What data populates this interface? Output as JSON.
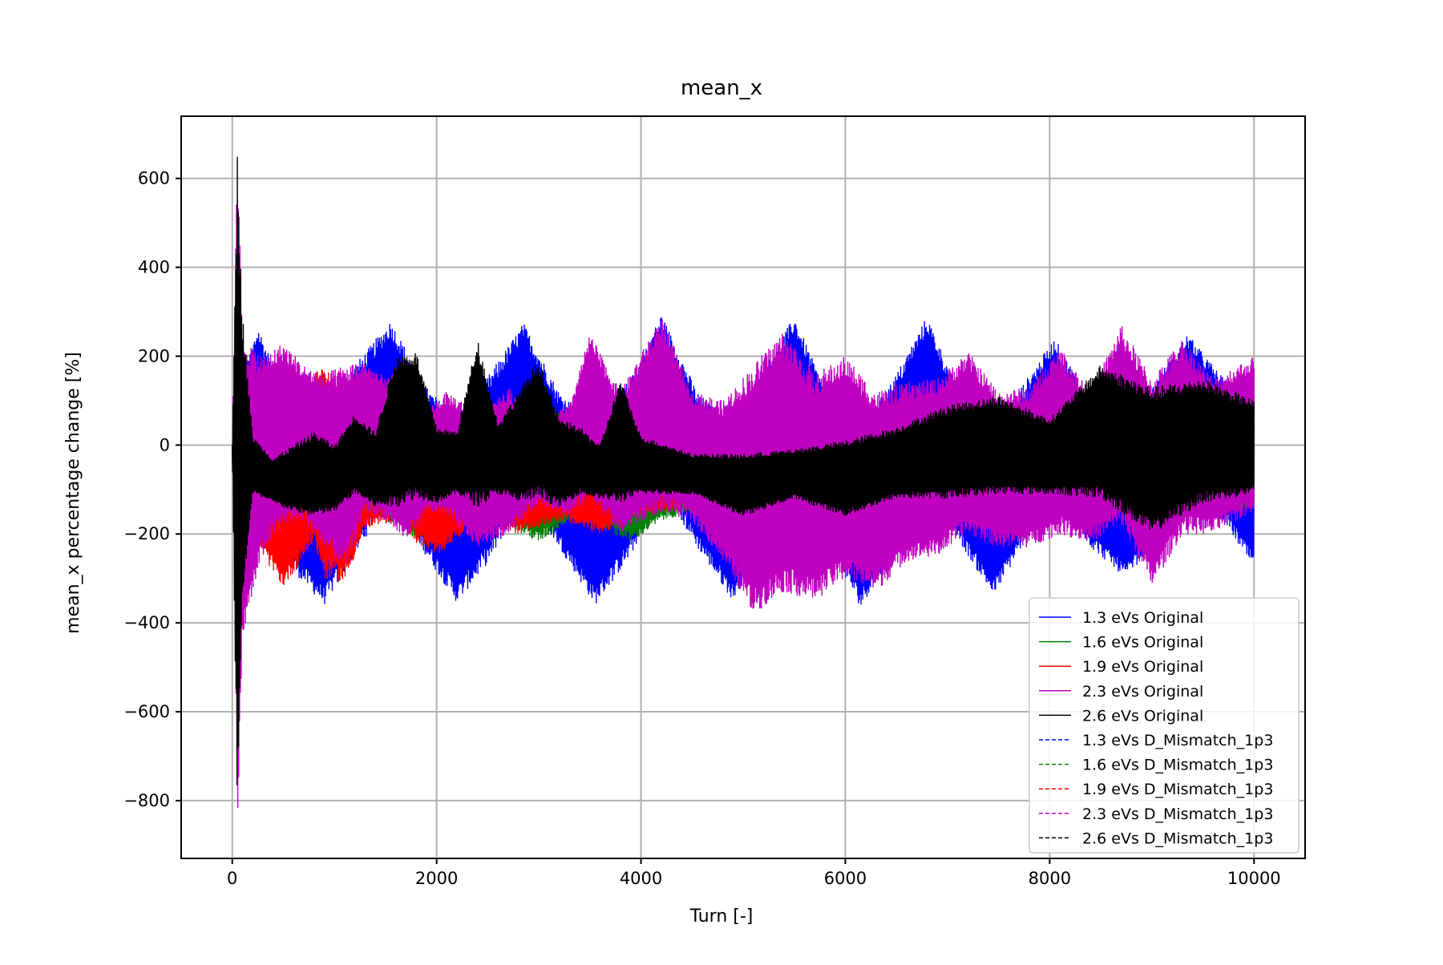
{
  "chart_data": {
    "type": "line",
    "title": "mean_x",
    "xlabel": "Turn [-]",
    "ylabel": "mean_x percentage change [%]",
    "xlim": [
      -500,
      10500
    ],
    "ylim": [
      -930,
      740
    ],
    "xticks": [
      0,
      2000,
      4000,
      6000,
      8000,
      10000
    ],
    "xtick_labels": [
      "0",
      "2000",
      "4000",
      "6000",
      "8000",
      "10000"
    ],
    "yticks": [
      600,
      400,
      200,
      0,
      -200,
      -400,
      -600,
      -800
    ],
    "ytick_labels": [
      "600",
      "400",
      "200",
      "0",
      "−200",
      "−400",
      "−600",
      "−800"
    ],
    "grid": true,
    "legend_position": "lower-right",
    "series": [
      {
        "name": "1.3 eVs Original",
        "color": "#0000ff",
        "style": "solid",
        "envelope": {
          "x": [
            0,
            100,
            250,
            500,
            900,
            1200,
            1550,
            1900,
            2200,
            2550,
            2850,
            3200,
            3550,
            3900,
            4200,
            4550,
            4900,
            5200,
            5500,
            5850,
            6150,
            6500,
            6800,
            7150,
            7450,
            7750,
            8050,
            8400,
            8750,
            9050,
            9350,
            9700,
            10000
          ],
          "upper": [
            0,
            150,
            270,
            120,
            60,
            180,
            280,
            130,
            60,
            170,
            275,
            120,
            50,
            150,
            295,
            120,
            40,
            170,
            290,
            100,
            40,
            160,
            290,
            100,
            40,
            140,
            240,
            100,
            20,
            150,
            250,
            150,
            50
          ],
          "lower": [
            0,
            -140,
            -150,
            -260,
            -360,
            -250,
            -110,
            -250,
            -355,
            -250,
            -110,
            -230,
            -360,
            -250,
            -100,
            -230,
            -350,
            -220,
            -100,
            -230,
            -365,
            -230,
            -100,
            -230,
            -340,
            -220,
            -100,
            -230,
            -300,
            -210,
            -90,
            -170,
            -280
          ]
        }
      },
      {
        "name": "1.6 eVs Original",
        "color": "#008000",
        "style": "solid",
        "envelope": {
          "x": [
            0,
            100,
            300,
            600,
            900,
            1200,
            1500,
            1800,
            2100,
            2400,
            2700,
            3000,
            3300,
            3600,
            3900,
            4200,
            4500,
            4800,
            5500,
            6000,
            7000,
            8000,
            9000,
            10000
          ],
          "upper": [
            0,
            60,
            80,
            40,
            60,
            80,
            40,
            30,
            20,
            60,
            50,
            40,
            90,
            60,
            30,
            20,
            60,
            30,
            20,
            10,
            20,
            10,
            20,
            0
          ],
          "lower": [
            0,
            -120,
            -200,
            -170,
            -210,
            -140,
            -170,
            -210,
            -200,
            -170,
            -180,
            -220,
            -170,
            -180,
            -220,
            -170,
            -150,
            -160,
            -130,
            -140,
            -150,
            -130,
            -160,
            -140
          ]
        }
      },
      {
        "name": "1.9 eVs Original",
        "color": "#ff0000",
        "style": "solid",
        "envelope": {
          "x": [
            0,
            100,
            300,
            500,
            800,
            900,
            1100,
            1300,
            1600,
            1800,
            2000,
            2400,
            2800,
            3200,
            3600,
            4000,
            4500,
            5000,
            6000,
            7000,
            8000,
            9000,
            10000
          ],
          "upper": [
            0,
            150,
            80,
            40,
            160,
            180,
            120,
            60,
            100,
            130,
            50,
            60,
            20,
            40,
            60,
            20,
            20,
            10,
            10,
            10,
            10,
            10,
            0
          ],
          "lower": [
            0,
            -150,
            -250,
            -320,
            -220,
            -300,
            -310,
            -190,
            -170,
            -220,
            -250,
            -170,
            -200,
            -170,
            -200,
            -160,
            -140,
            -150,
            -130,
            -140,
            -150,
            -150,
            -130
          ]
        }
      },
      {
        "name": "2.3 eVs Original",
        "color": "#c000c0",
        "style": "solid",
        "envelope": {
          "x": [
            0,
            50,
            100,
            300,
            500,
            700,
            900,
            1100,
            1300,
            1500,
            1700,
            1900,
            2100,
            2400,
            2700,
            3000,
            3300,
            3500,
            3800,
            4200,
            4500,
            4800,
            5100,
            5400,
            5700,
            6000,
            6300,
            6600,
            6900,
            7200,
            7500,
            7800,
            8100,
            8400,
            8700,
            9000,
            9300,
            9600,
            10000
          ],
          "upper": [
            0,
            670,
            250,
            200,
            230,
            180,
            160,
            180,
            190,
            150,
            200,
            80,
            120,
            80,
            130,
            60,
            90,
            250,
            120,
            290,
            120,
            100,
            180,
            260,
            160,
            200,
            120,
            140,
            150,
            210,
            120,
            130,
            220,
            120,
            270,
            150,
            240,
            150,
            200
          ],
          "lower": [
            0,
            -850,
            -440,
            -240,
            -180,
            -170,
            -230,
            -280,
            -150,
            -170,
            -220,
            -150,
            -160,
            -230,
            -200,
            -130,
            -160,
            -120,
            -200,
            -150,
            -170,
            -260,
            -380,
            -330,
            -350,
            -300,
            -330,
            -260,
            -250,
            -200,
            -230,
            -230,
            -200,
            -220,
            -180,
            -320,
            -200,
            -200,
            -150
          ]
        }
      },
      {
        "name": "2.6 eVs Original",
        "color": "#000000",
        "style": "solid",
        "envelope": {
          "x": [
            0,
            50,
            100,
            200,
            400,
            600,
            800,
            1000,
            1200,
            1400,
            1600,
            1800,
            2000,
            2200,
            2400,
            2600,
            2800,
            3000,
            3200,
            3400,
            3600,
            3800,
            4000,
            4500,
            5000,
            5500,
            6000,
            6500,
            7000,
            7500,
            8000,
            8500,
            9000,
            9500,
            10000
          ],
          "upper": [
            0,
            660,
            300,
            20,
            -30,
            0,
            30,
            0,
            70,
            30,
            200,
            210,
            40,
            30,
            240,
            50,
            120,
            190,
            60,
            40,
            0,
            150,
            20,
            -20,
            -20,
            -10,
            10,
            40,
            90,
            110,
            60,
            180,
            130,
            150,
            100
          ],
          "lower": [
            0,
            -850,
            -350,
            -110,
            -130,
            -150,
            -160,
            -150,
            -110,
            -140,
            -140,
            -120,
            -130,
            -110,
            -140,
            -110,
            -130,
            -120,
            -140,
            -110,
            -120,
            -130,
            -110,
            -110,
            -160,
            -120,
            -160,
            -120,
            -120,
            -110,
            -110,
            -120,
            -200,
            -130,
            -110
          ]
        }
      },
      {
        "name": "1.3 eVs D_Mismatch_1p3",
        "color": "#0000ff",
        "style": "dashed"
      },
      {
        "name": "1.6 eVs D_Mismatch_1p3",
        "color": "#008000",
        "style": "dashed"
      },
      {
        "name": "1.9 eVs D_Mismatch_1p3",
        "color": "#ff0000",
        "style": "dashed"
      },
      {
        "name": "2.3 eVs D_Mismatch_1p3",
        "color": "#c000c0",
        "style": "dashed"
      },
      {
        "name": "2.6 eVs D_Mismatch_1p3",
        "color": "#000000",
        "style": "dashed"
      }
    ]
  }
}
